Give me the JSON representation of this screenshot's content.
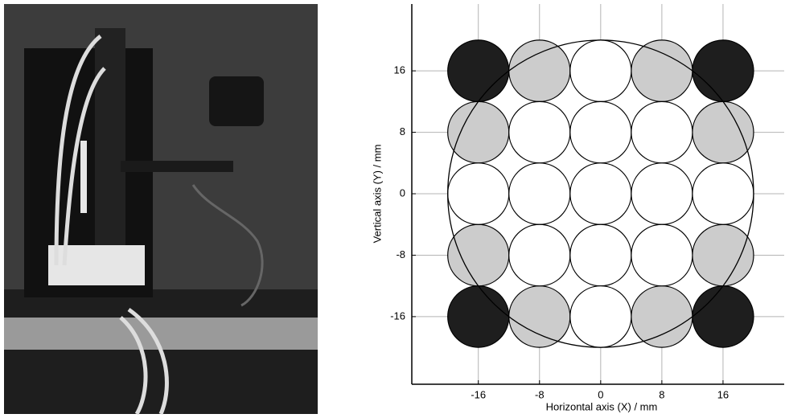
{
  "chart_data": {
    "type": "scatter",
    "x_label": "Horizontal axis (X) / mm",
    "y_label": "Vertical axis (Y) / mm",
    "xlim": [
      -24.7,
      24
    ],
    "ylim": [
      -24.8,
      24.7
    ],
    "xticks": [
      -16,
      -8,
      0,
      8,
      16
    ],
    "yticks": [
      -16,
      -8,
      0,
      8,
      16
    ],
    "grid": true,
    "marker_radius": 4,
    "boundary_radius": 20,
    "series": [
      {
        "color": "#1e1e1e",
        "x": [
          -16,
          16,
          -16,
          16
        ],
        "y": [
          16,
          16,
          -16,
          -16
        ]
      },
      {
        "color": "#cccccc",
        "x": [
          -8,
          8,
          -16,
          16,
          -16,
          16,
          -8,
          8
        ],
        "y": [
          16,
          16,
          8,
          8,
          -8,
          -8,
          -16,
          -16
        ]
      },
      {
        "color": "#ffffff",
        "x": [
          0,
          -8,
          0,
          8,
          -16,
          -8,
          0,
          8,
          16,
          -8,
          0,
          8,
          0
        ],
        "y": [
          16,
          8,
          8,
          8,
          0,
          0,
          0,
          0,
          0,
          -8,
          -8,
          -8,
          -16
        ]
      }
    ]
  }
}
